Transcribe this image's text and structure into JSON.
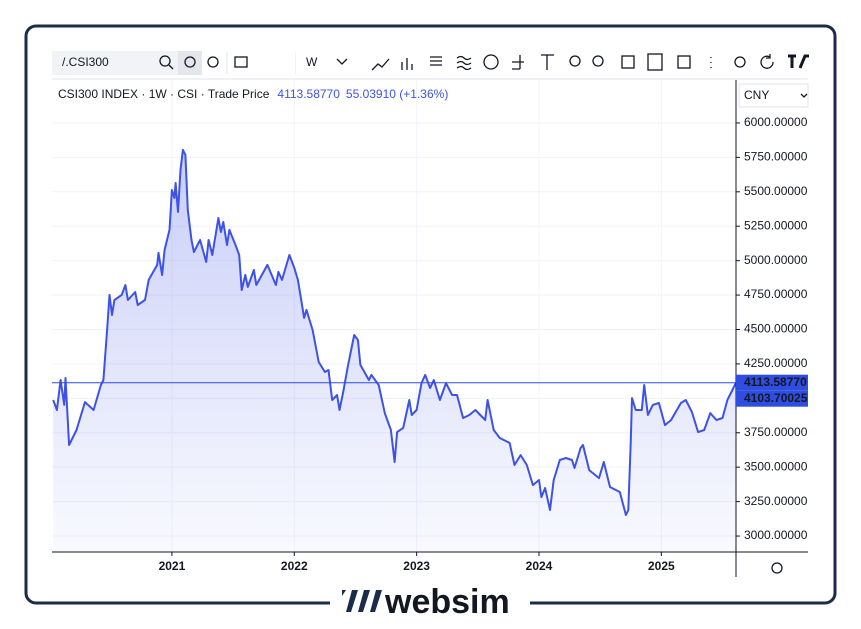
{
  "toolbar": {
    "symbol": "/.CSI300",
    "interval": "W"
  },
  "legend": {
    "title": "CSI300 INDEX · 1W · CSI · Trade Price",
    "last": "4113.58770",
    "change": "55.03910 (+1.36%)"
  },
  "currency": "CNY",
  "brand": "websim",
  "chart_data": {
    "type": "area",
    "color": "#3d52e6",
    "x": [
      2020.03,
      2020.06,
      2020.09,
      2020.12,
      2020.13,
      2020.16,
      2020.22,
      2020.29,
      2020.36,
      2020.42,
      2020.44,
      2020.47,
      2020.49,
      2020.51,
      2020.53,
      2020.59,
      2020.62,
      2020.64,
      2020.7,
      2020.72,
      2020.78,
      2020.81,
      2020.88,
      2020.89,
      2020.92,
      2020.94,
      2020.98,
      2021.0,
      2021.02,
      2021.03,
      2021.05,
      2021.07,
      2021.09,
      2021.11,
      2021.13,
      2021.16,
      2021.18,
      2021.23,
      2021.28,
      2021.3,
      2021.33,
      2021.38,
      2021.4,
      2021.42,
      2021.45,
      2021.47,
      2021.52,
      2021.55,
      2021.57,
      2021.6,
      2021.62,
      2021.67,
      2021.69,
      2021.78,
      2021.85,
      2021.87,
      2021.9,
      2021.96,
      2022.0,
      2022.03,
      2022.05,
      2022.08,
      2022.1,
      2022.15,
      2022.2,
      2022.25,
      2022.28,
      2022.31,
      2022.35,
      2022.37,
      2022.4,
      2022.44,
      2022.49,
      2022.52,
      2022.54,
      2022.61,
      2022.63,
      2022.69,
      2022.74,
      2022.79,
      2022.82,
      2022.84,
      2022.89,
      2022.94,
      2022.96,
      2023.0,
      2023.04,
      2023.07,
      2023.11,
      2023.14,
      2023.19,
      2023.24,
      2023.29,
      2023.33,
      2023.38,
      2023.43,
      2023.48,
      2023.56,
      2023.58,
      2023.63,
      2023.68,
      2023.76,
      2023.8,
      2023.85,
      2023.9,
      2023.95,
      2024.0,
      2024.02,
      2024.05,
      2024.09,
      2024.12,
      2024.17,
      2024.22,
      2024.27,
      2024.29,
      2024.34,
      2024.36,
      2024.41,
      2024.49,
      2024.53,
      2024.58,
      2024.66,
      2024.71,
      2024.73,
      2024.75,
      2024.76,
      2024.79,
      2024.84,
      2024.86,
      2024.89,
      2024.93,
      2024.98,
      2025.03,
      2025.08,
      2025.16,
      2025.2,
      2025.25,
      2025.3,
      2025.35,
      2025.4,
      2025.45,
      2025.5,
      2025.54,
      2025.61
    ],
    "values": [
      3988,
      3915,
      4133,
      3952,
      4148,
      3661,
      3770,
      3973,
      3915,
      4097,
      4133,
      4496,
      4751,
      4605,
      4714,
      4751,
      4823,
      4714,
      4772,
      4678,
      4714,
      4860,
      4969,
      5056,
      4896,
      5078,
      5223,
      5513,
      5455,
      5564,
      5354,
      5659,
      5804,
      5768,
      5368,
      5150,
      5063,
      5150,
      4990,
      5150,
      5041,
      5310,
      5208,
      5281,
      5114,
      5223,
      5114,
      5041,
      4787,
      4896,
      4809,
      4932,
      4823,
      4969,
      4823,
      4918,
      4860,
      5041,
      4947,
      4860,
      4751,
      4584,
      4642,
      4496,
      4264,
      4191,
      4206,
      3988,
      4024,
      3915,
      4046,
      4242,
      4460,
      4424,
      4242,
      4133,
      4170,
      4097,
      3893,
      3770,
      3538,
      3755,
      3785,
      3988,
      3879,
      3915,
      4111,
      4170,
      4075,
      4133,
      3988,
      4111,
      4024,
      4024,
      3857,
      3879,
      3915,
      3843,
      3988,
      3770,
      3712,
      3676,
      3516,
      3588,
      3516,
      3370,
      3407,
      3283,
      3349,
      3189,
      3407,
      3552,
      3567,
      3552,
      3494,
      3639,
      3661,
      3479,
      3421,
      3538,
      3356,
      3320,
      3153,
      3189,
      3697,
      4002,
      3915,
      3915,
      4097,
      3879,
      3952,
      3966,
      3806,
      3843,
      3966,
      3988,
      3901,
      3755,
      3770,
      3893,
      3843,
      3857,
      3988,
      4113.5877
    ],
    "xlim": [
      2020.02,
      2025.61
    ],
    "xticks": [
      2021,
      2022,
      2023,
      2024,
      2025
    ],
    "ylim": [
      2884,
      6312
    ],
    "yticks": [
      {
        "value": 3000,
        "label": "3000.00000"
      },
      {
        "value": 3250,
        "label": "3250.00000"
      },
      {
        "value": 3500,
        "label": "3500.00000"
      },
      {
        "value": 3750,
        "label": "3750.00000"
      },
      {
        "value": 4000,
        "label": "4000.00000"
      },
      {
        "value": 4250,
        "label": "4250.00000"
      },
      {
        "value": 4500,
        "label": "4500.00000"
      },
      {
        "value": 4750,
        "label": "4750.00000"
      },
      {
        "value": 5000,
        "label": "5000.00000"
      },
      {
        "value": 5250,
        "label": "5250.00000"
      },
      {
        "value": 5500,
        "label": "5500.00000"
      },
      {
        "value": 5750,
        "label": "5750.00000"
      },
      {
        "value": 6000,
        "label": "6000.00000"
      }
    ],
    "grid": true,
    "price_lines": [
      {
        "value": 4113.5877,
        "label": "4113.58770"
      },
      {
        "value": 4103.70025,
        "label": "4103.70025"
      }
    ]
  }
}
